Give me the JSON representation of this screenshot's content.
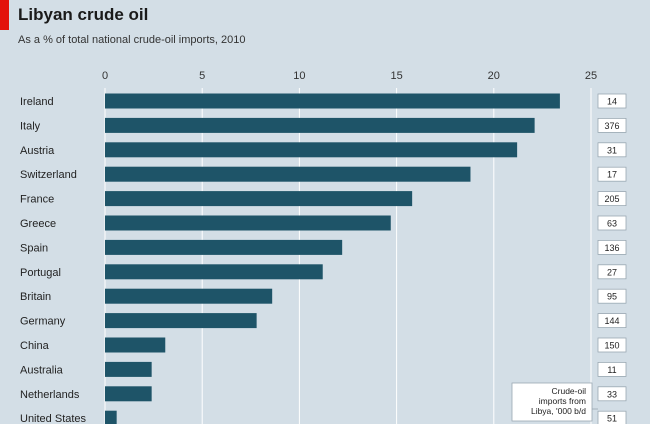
{
  "accent_color": "#e3120b",
  "bar_color": "#1e5468",
  "chart_data": {
    "type": "bar",
    "orientation": "horizontal",
    "title": "Libyan crude oil",
    "subtitle": "As a % of total national crude-oil imports, 2010",
    "categories": [
      "Ireland",
      "Italy",
      "Austria",
      "Switzerland",
      "France",
      "Greece",
      "Spain",
      "Portugal",
      "Britain",
      "Germany",
      "China",
      "Australia",
      "Netherlands",
      "United States"
    ],
    "values": [
      23.4,
      22.1,
      21.2,
      18.8,
      15.8,
      14.7,
      12.2,
      11.2,
      8.6,
      7.8,
      3.1,
      2.4,
      2.4,
      0.6
    ],
    "imports_kbd": [
      "14",
      "376",
      "31",
      "17",
      "205",
      "63",
      "136",
      "27",
      "95",
      "144",
      "150",
      "11",
      "33",
      "51"
    ],
    "xticks": [
      0,
      5,
      10,
      15,
      20,
      25
    ],
    "xlim": [
      0,
      25
    ],
    "grid": true,
    "legend_box": "Crude-oil imports from Libya, '000 b/d"
  }
}
